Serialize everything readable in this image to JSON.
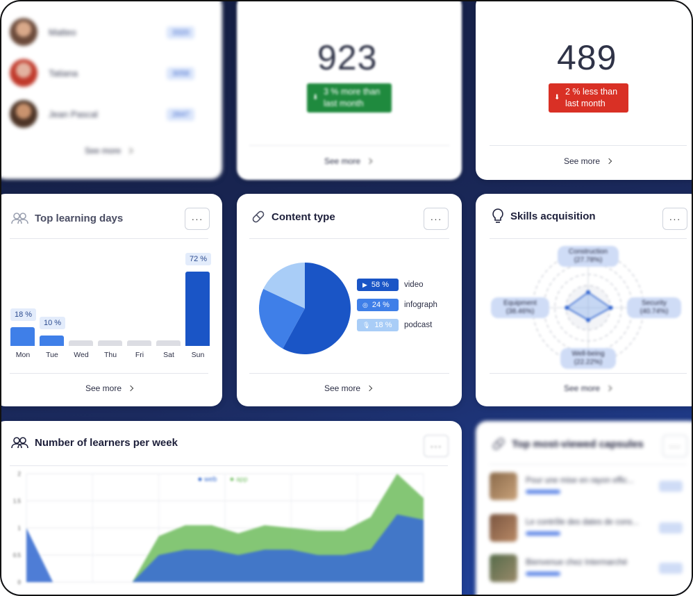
{
  "learners_card": {
    "rows": [
      {
        "name": "Matteo",
        "score": "3320"
      },
      {
        "name": "Tatiana",
        "score": "3058"
      },
      {
        "name": "Jean Pascal",
        "score": "2647"
      }
    ],
    "see_more": "See more"
  },
  "stat_card_1": {
    "value": "923",
    "delta_line1": "3 % more than",
    "delta_line2": "last month",
    "see_more": "See more",
    "color": "#1f8a3e"
  },
  "stat_card_2": {
    "value": "489",
    "delta_line1": "2 % less than",
    "delta_line2": "last month",
    "see_more": "See more",
    "color": "#d93025"
  },
  "top_days": {
    "title": "Top learning days",
    "menu": "···",
    "see_more": "See more",
    "chart_data": {
      "type": "bar",
      "categories": [
        "Mon",
        "Tue",
        "Wed",
        "Thu",
        "Fri",
        "Sat",
        "Sun"
      ],
      "values": [
        18,
        10,
        0,
        0,
        0,
        0,
        72
      ],
      "labels": [
        "18 %",
        "10 %",
        "",
        "",
        "",
        "",
        "72 %"
      ],
      "ylim": [
        0,
        72
      ]
    }
  },
  "content_type": {
    "title": "Content type",
    "menu": "···",
    "see_more": "See more",
    "chart_data": {
      "type": "pie",
      "series": [
        {
          "name": "video",
          "value": 58,
          "label": "58 %",
          "color": "#1a55c6"
        },
        {
          "name": "infograph",
          "value": 24,
          "label": "24 %",
          "color": "#3f7fe8"
        },
        {
          "name": "podcast",
          "value": 18,
          "label": "18 %",
          "color": "#a9cdf7"
        }
      ]
    }
  },
  "skills": {
    "title": "Skills acquisition",
    "menu": "···",
    "see_more": "See more",
    "chart_data": {
      "type": "radar",
      "axes": [
        {
          "name": "Construction",
          "value": "(27.78%)",
          "v": 27.78
        },
        {
          "name": "Security",
          "value": "(40.74%)",
          "v": 40.74
        },
        {
          "name": "Well-being",
          "value": "(22.22%)",
          "v": 22.22
        },
        {
          "name": "Equipment",
          "value": "(38.46%)",
          "v": 38.46
        }
      ]
    }
  },
  "learners_week": {
    "title": "Number of learners per week",
    "menu": "···",
    "chart_data": {
      "type": "area",
      "legend": [
        "web",
        "app"
      ],
      "yticks": [
        "2",
        "1.5",
        "1",
        "0.5",
        "0"
      ],
      "ylim": [
        0,
        2
      ],
      "series": [
        {
          "name": "web",
          "color": "#3b6fd1",
          "values": [
            1.0,
            0.0,
            0.0,
            0.0,
            0.0,
            0.5,
            0.6,
            0.6,
            0.5,
            0.6,
            0.6,
            0.5,
            0.5,
            0.6,
            1.25,
            1.15
          ]
        },
        {
          "name": "app",
          "color": "#7dc36e",
          "values": [
            0.0,
            0.0,
            0.0,
            0.0,
            0.0,
            0.85,
            1.05,
            1.05,
            0.9,
            1.05,
            1.0,
            0.95,
            0.95,
            1.2,
            2.0,
            1.55
          ]
        }
      ]
    }
  },
  "capsules": {
    "title": "Top most-viewed capsules",
    "menu": "···",
    "items": [
      {
        "title": "Pour une mise en rayon effic..."
      },
      {
        "title": "Le contrôle des dates de cons..."
      },
      {
        "title": "Bienvenue chez Intermarché"
      }
    ]
  }
}
